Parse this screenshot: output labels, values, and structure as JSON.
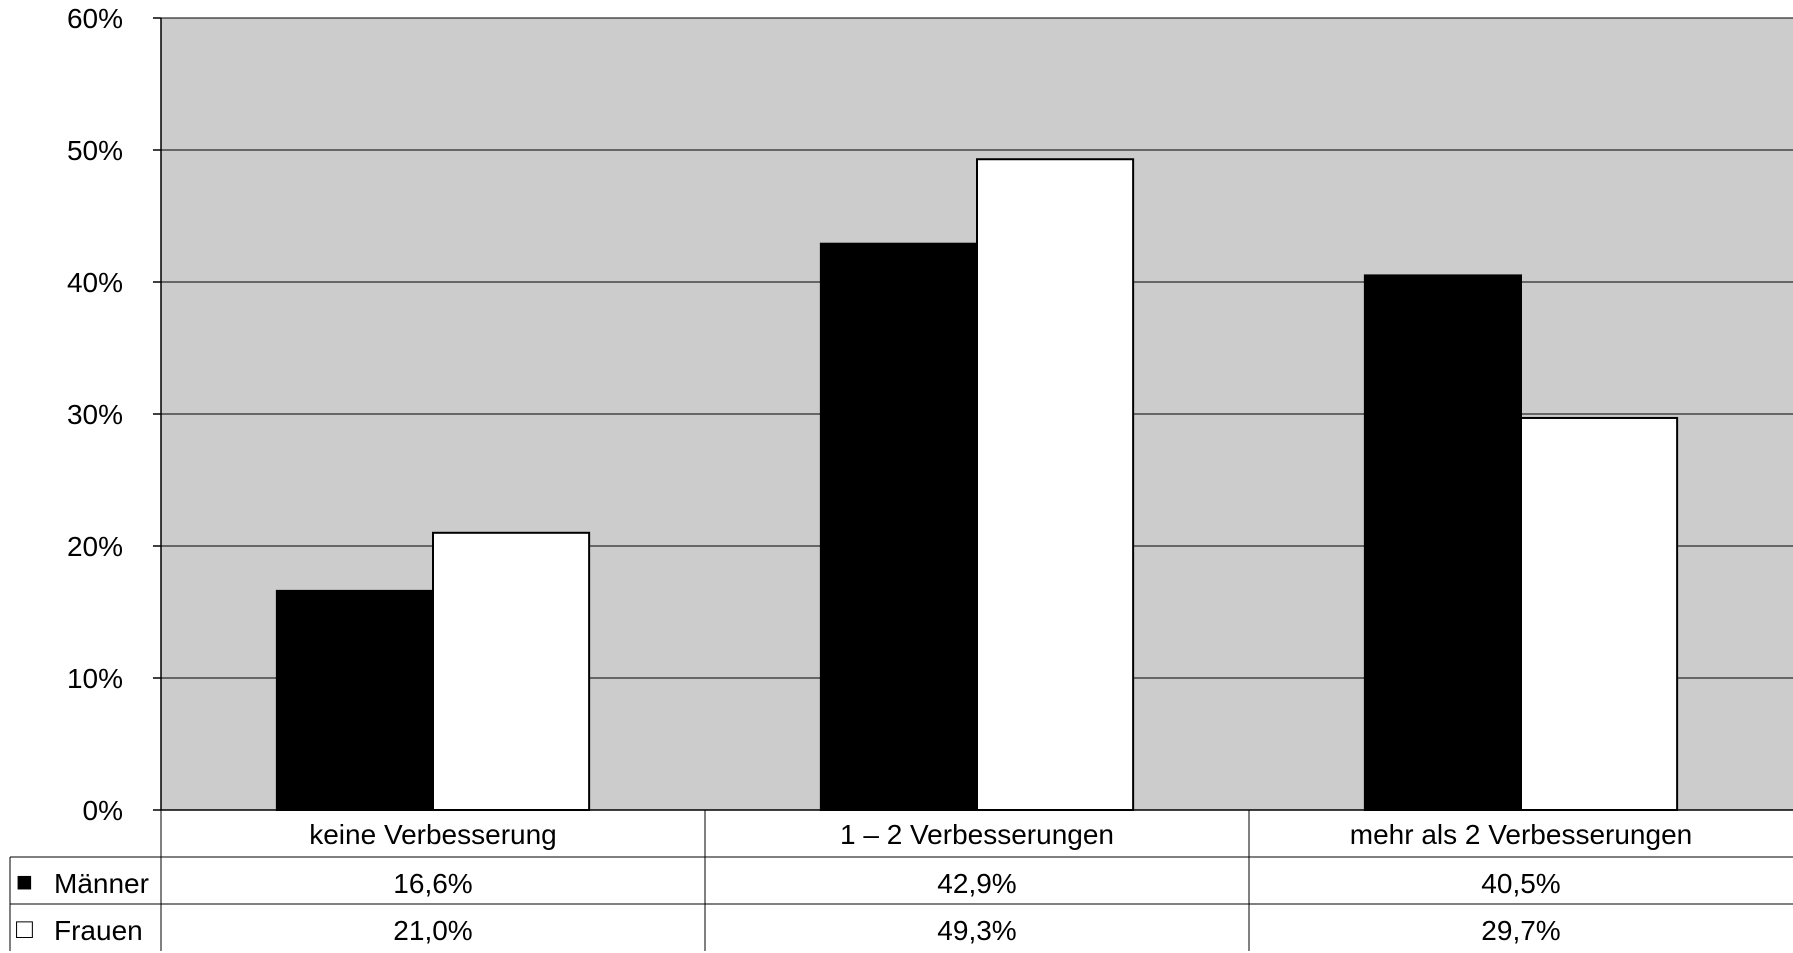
{
  "chart_data": {
    "type": "bar",
    "categories": [
      "keine Verbesserung",
      "1 – 2 Verbesserungen",
      "mehr als 2 Verbesserungen"
    ],
    "series": [
      {
        "name": "Männer",
        "values": [
          16.6,
          42.9,
          40.5
        ],
        "labels": [
          "16,6%",
          "42,9%",
          "40,5%"
        ],
        "color": "#000000",
        "legend_symbol": "■"
      },
      {
        "name": "Frauen",
        "values": [
          21.0,
          49.3,
          29.7
        ],
        "labels": [
          "21,0%",
          "49,3%",
          "29,7%"
        ],
        "color": "#ffffff",
        "legend_symbol": "□"
      }
    ],
    "ylim": [
      0,
      60
    ],
    "yticks": [
      "0%",
      "10%",
      "20%",
      "30%",
      "40%",
      "50%",
      "60%"
    ],
    "grid": true,
    "legend_placement": "data-table-left",
    "plot_background": "#cccccc"
  }
}
